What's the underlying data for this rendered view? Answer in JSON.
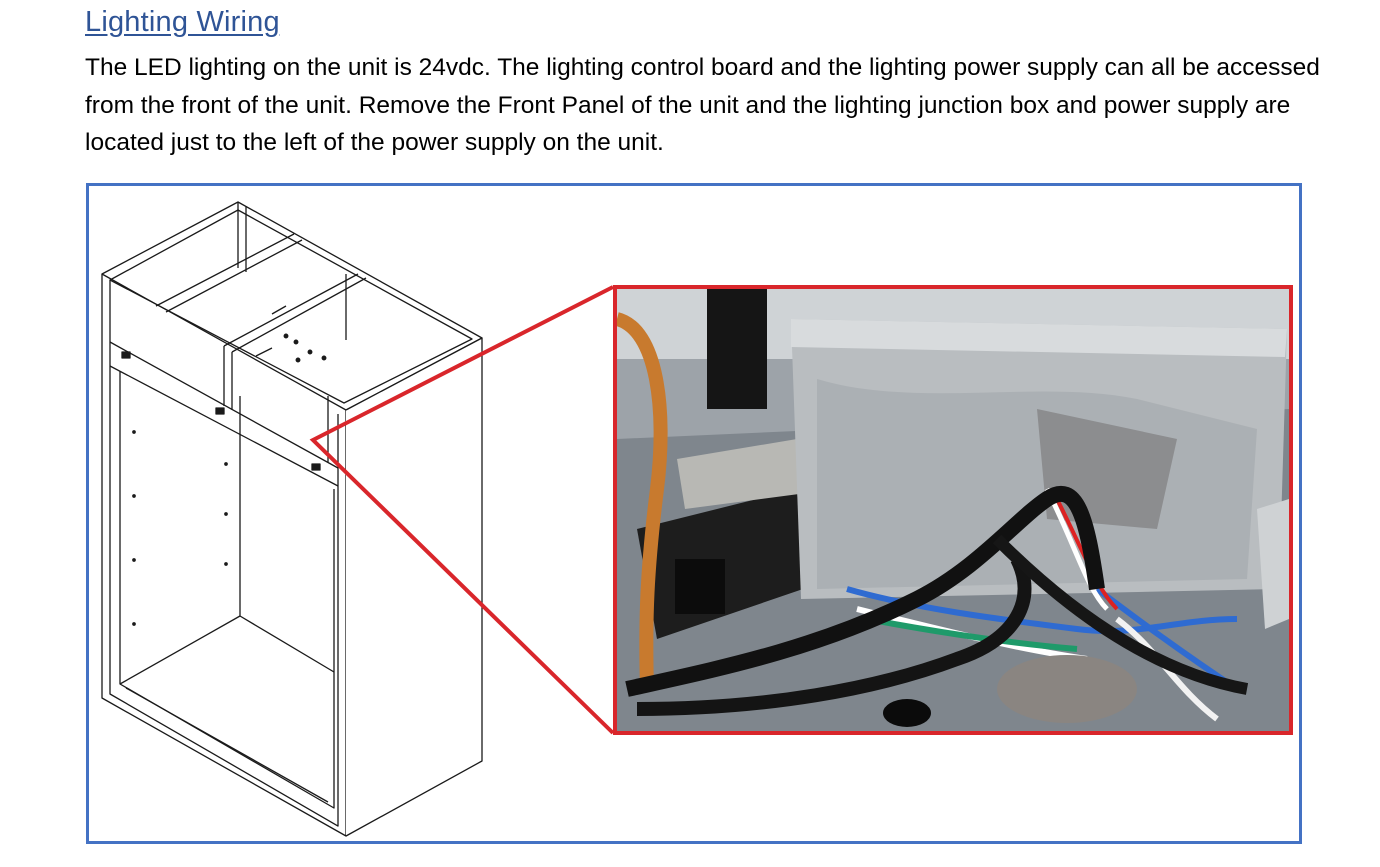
{
  "section": {
    "title": "Lighting Wiring",
    "body": "The LED lighting on the unit is 24vdc.   The lighting control board and the lighting power supply can all be accessed from the front of the unit.  Remove the Front Panel of the unit and the lighting junction box and power supply are located just to the left of the power supply on the unit."
  },
  "figure": {
    "frame_color": "#4472c4",
    "callout_color": "#d9262b",
    "cabinet_image": "cabinet-line-drawing",
    "photo_image": "lighting-junction-box-photo"
  }
}
